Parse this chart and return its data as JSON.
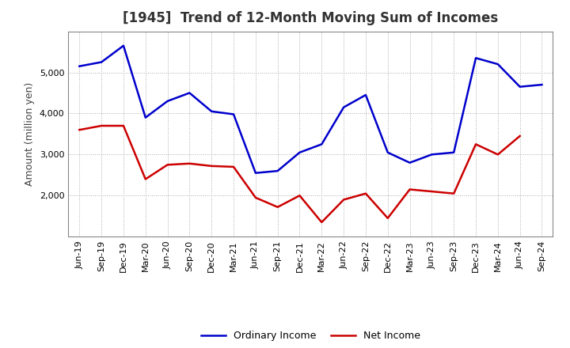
{
  "title": "[1945]  Trend of 12-Month Moving Sum of Incomes",
  "ylabel": "Amount (million yen)",
  "labels": [
    "Jun-19",
    "Sep-19",
    "Dec-19",
    "Mar-20",
    "Jun-20",
    "Sep-20",
    "Dec-20",
    "Mar-21",
    "Jun-21",
    "Sep-21",
    "Dec-21",
    "Mar-22",
    "Jun-22",
    "Sep-22",
    "Dec-22",
    "Mar-23",
    "Jun-23",
    "Sep-23",
    "Dec-23",
    "Mar-24",
    "Jun-24",
    "Sep-24"
  ],
  "ordinary_income": [
    5150,
    5250,
    5650,
    3900,
    4300,
    4500,
    4050,
    3980,
    2550,
    2600,
    3050,
    3250,
    4150,
    4450,
    3050,
    2800,
    3000,
    3050,
    5350,
    5200,
    4650,
    4700
  ],
  "net_income": [
    3600,
    3700,
    3700,
    2400,
    2750,
    2780,
    2720,
    2700,
    1950,
    1720,
    2000,
    1350,
    1900,
    2050,
    1450,
    2150,
    2100,
    2050,
    3250,
    3000,
    3450,
    null
  ],
  "ordinary_color": "#0000cc",
  "net_color": "#cc0000",
  "bg_color": "#ffffff",
  "grid_color": "#aaaaaa",
  "ylim_min": 1000,
  "ylim_max": 6000,
  "yticks": [
    2000,
    3000,
    4000,
    5000
  ],
  "legend_ordinary": "Ordinary Income",
  "legend_net": "Net Income",
  "title_fontsize": 12,
  "ylabel_fontsize": 9,
  "tick_fontsize": 8,
  "legend_fontsize": 9
}
